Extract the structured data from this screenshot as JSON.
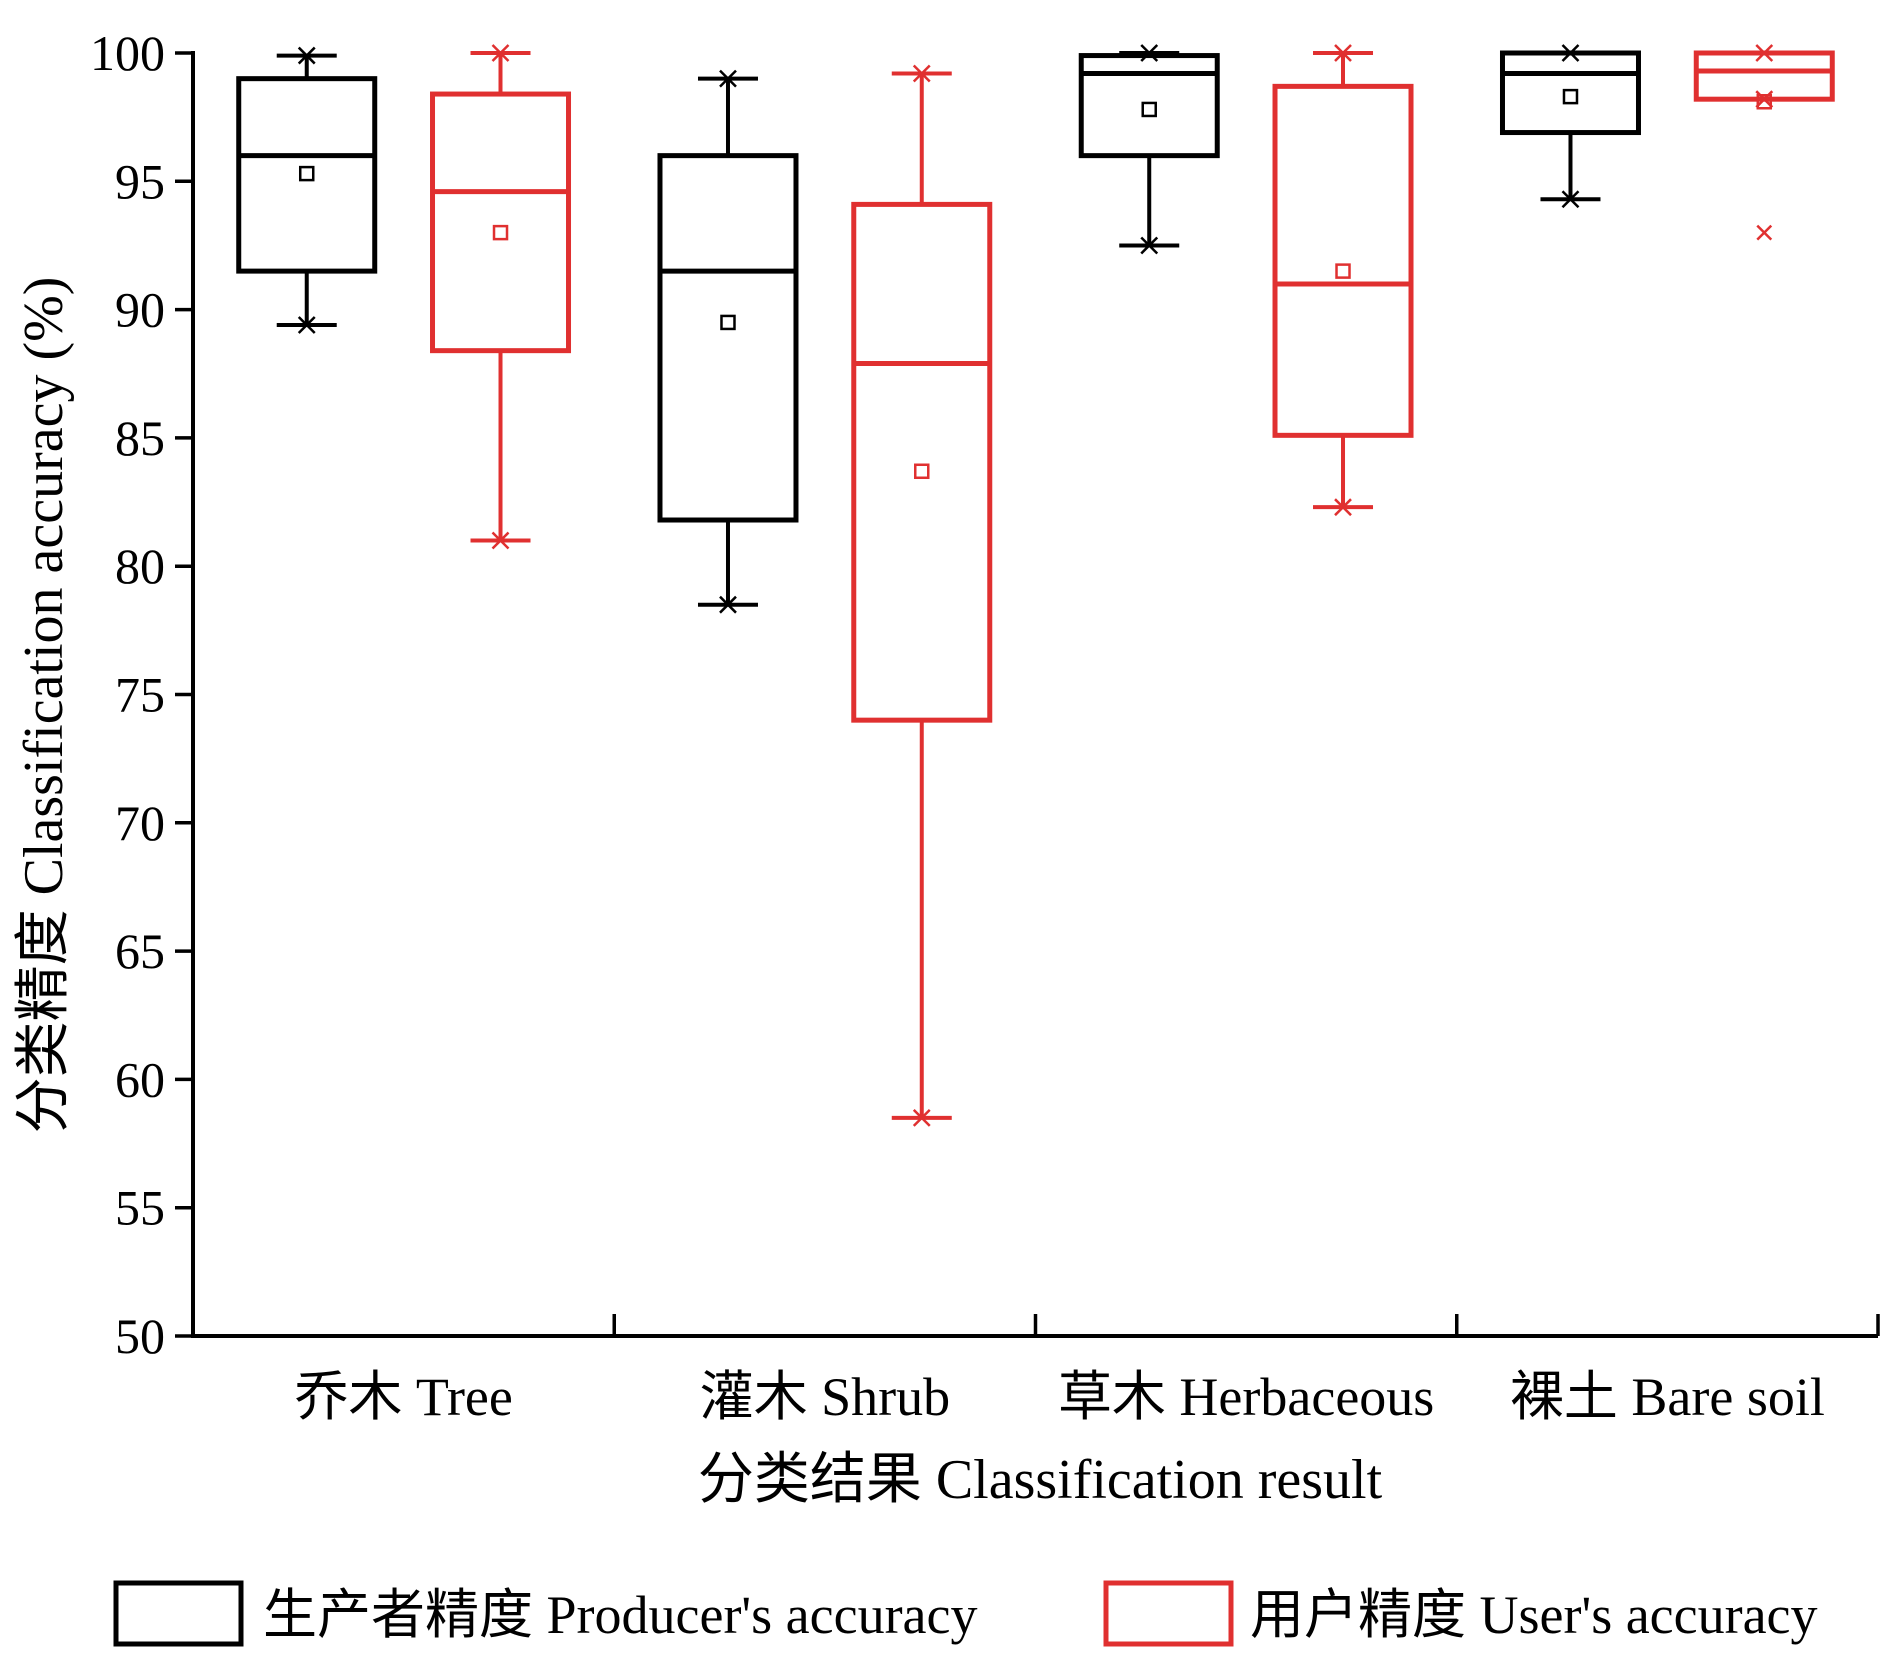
{
  "chart_data": {
    "type": "box",
    "xlabel": "分类结果  Classification result",
    "ylabel": "分类精度  Classification accuracy (%)",
    "ylim": [
      50,
      100
    ],
    "yticks": [
      50,
      55,
      60,
      65,
      70,
      75,
      80,
      85,
      90,
      95,
      100
    ],
    "grid": false,
    "legend_position": "bottom",
    "categories": [
      "乔木  Tree",
      "灌木  Shrub",
      "草木  Herbaceous",
      "裸土  Bare soil"
    ],
    "series": [
      {
        "name": "生产者精度  Producer's accuracy",
        "color": "#000000",
        "boxes": [
          {
            "min": 89.4,
            "q1": 91.5,
            "median": 96.0,
            "q3": 99.0,
            "max": 99.9,
            "mean": 95.3
          },
          {
            "min": 78.5,
            "q1": 81.8,
            "median": 91.5,
            "q3": 96.0,
            "max": 99.0,
            "mean": 89.5
          },
          {
            "min": 92.5,
            "q1": 96.0,
            "median": 99.2,
            "q3": 99.9,
            "max": 100.0,
            "mean": 97.8
          },
          {
            "min": 94.3,
            "q1": 96.9,
            "median": 99.2,
            "q3": 100.0,
            "max": 100.0,
            "mean": 98.3
          }
        ]
      },
      {
        "name": "用户精度  User's accuracy",
        "color": "#e03030",
        "boxes": [
          {
            "min": 81.0,
            "q1": 88.4,
            "median": 94.6,
            "q3": 98.4,
            "max": 100.0,
            "mean": 93.0
          },
          {
            "min": 58.5,
            "q1": 74.0,
            "median": 87.9,
            "q3": 94.1,
            "max": 99.2,
            "mean": 83.7
          },
          {
            "min": 82.3,
            "q1": 85.1,
            "median": 91.0,
            "q3": 98.7,
            "max": 100.0,
            "mean": 91.5
          },
          {
            "min": 98.2,
            "q1": 98.2,
            "median": 99.3,
            "q3": 100.0,
            "max": 100.0,
            "mean": 98.1,
            "outliers": [
              93.0
            ]
          }
        ]
      }
    ]
  }
}
